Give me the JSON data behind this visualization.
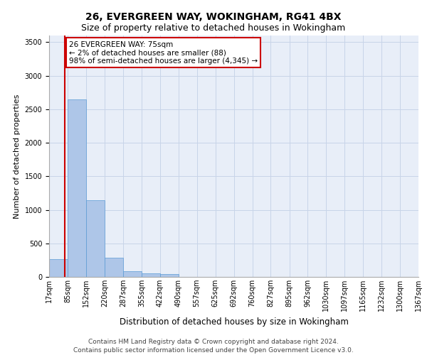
{
  "title1": "26, EVERGREEN WAY, WOKINGHAM, RG41 4BX",
  "title2": "Size of property relative to detached houses in Wokingham",
  "xlabel": "Distribution of detached houses by size in Wokingham",
  "ylabel": "Number of detached properties",
  "bar_color": "#aec6e8",
  "bar_edge_color": "#5a9bd4",
  "annotation_line_color": "#cc0000",
  "annotation_box_color": "#cc0000",
  "annotation_text": "26 EVERGREEN WAY: 75sqm\n← 2% of detached houses are smaller (88)\n98% of semi-detached houses are larger (4,345) →",
  "property_size_sqm": 75,
  "bin_edges": [
    17,
    85,
    152,
    220,
    287,
    355,
    422,
    490,
    557,
    625,
    692,
    760,
    827,
    895,
    962,
    1030,
    1097,
    1165,
    1232,
    1300,
    1367
  ],
  "bin_counts": [
    270,
    2650,
    1140,
    285,
    90,
    55,
    40,
    0,
    0,
    0,
    0,
    0,
    0,
    0,
    0,
    0,
    0,
    0,
    0,
    0
  ],
  "ylim": [
    0,
    3600
  ],
  "yticks": [
    0,
    500,
    1000,
    1500,
    2000,
    2500,
    3000,
    3500
  ],
  "footer_text": "Contains HM Land Registry data © Crown copyright and database right 2024.\nContains public sector information licensed under the Open Government Licence v3.0.",
  "background_color": "#e8eef8",
  "grid_color": "#c8d4e8",
  "title1_fontsize": 10,
  "title2_fontsize": 9,
  "xlabel_fontsize": 8.5,
  "ylabel_fontsize": 8,
  "tick_fontsize": 7,
  "annotation_fontsize": 7.5,
  "footer_fontsize": 6.5
}
